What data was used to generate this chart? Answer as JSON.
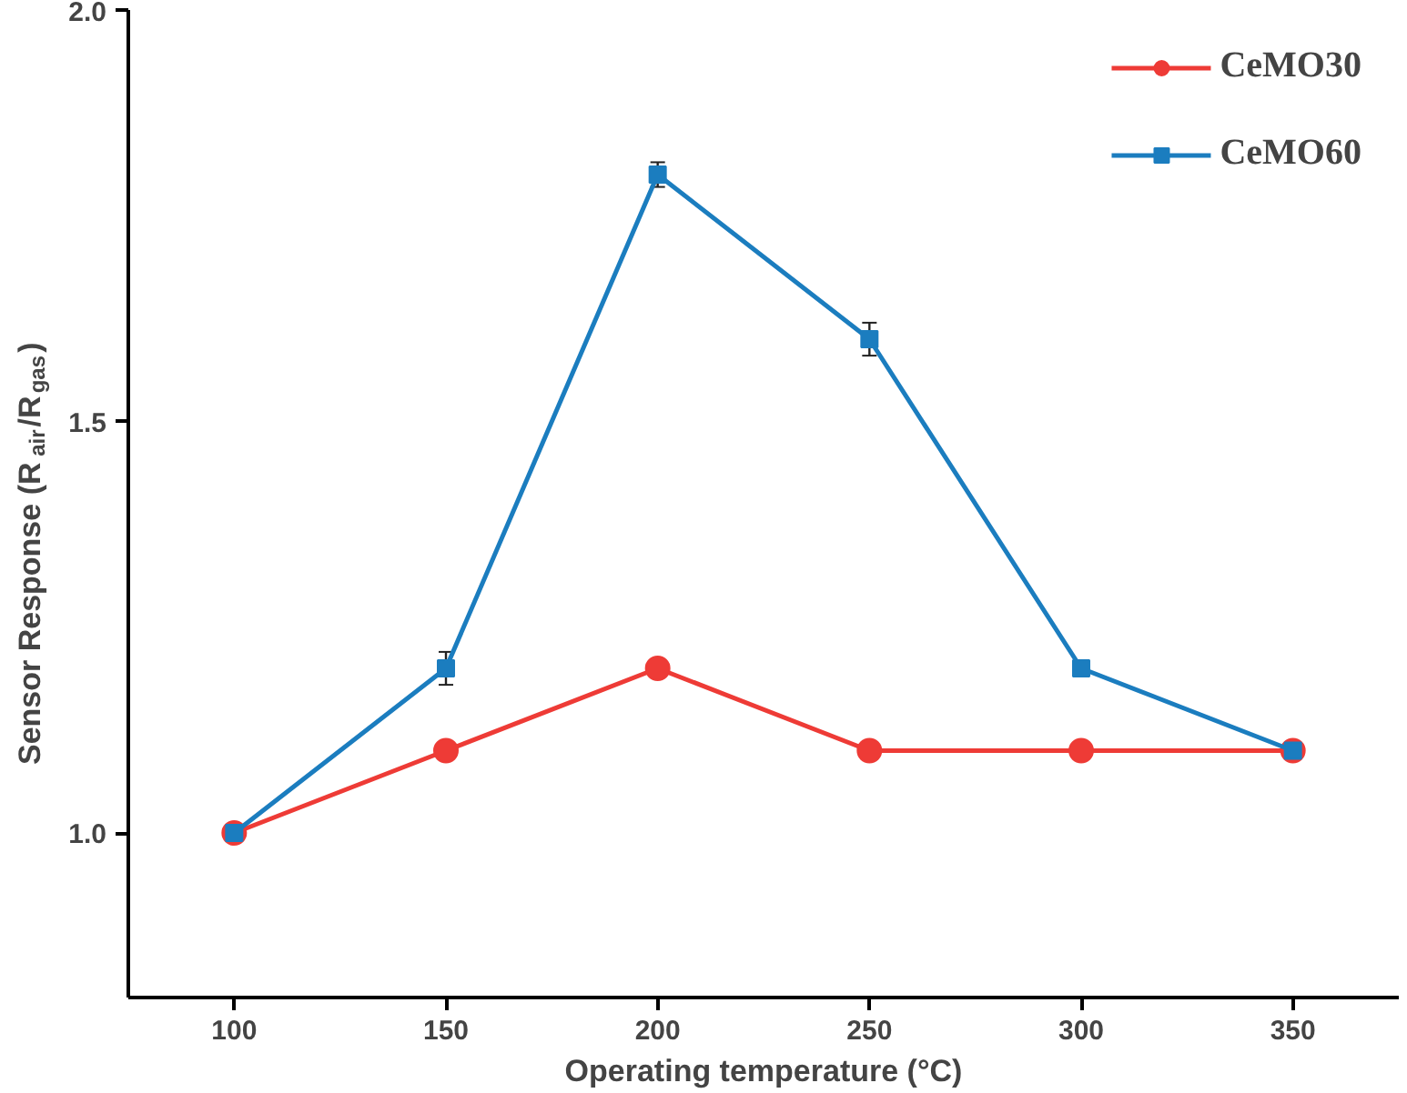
{
  "chart_data": {
    "type": "line",
    "xlabel": "Operating temperature (°C)",
    "ylabel": "Sensor Response (R$_{air}$/R$_{gas}$)",
    "x": [
      100,
      150,
      200,
      250,
      300,
      350
    ],
    "series": [
      {
        "name": "CeMO30",
        "color": "#ee3b36",
        "marker": "circle",
        "values": [
          1.0,
          1.1,
          1.2,
          1.1,
          1.1,
          1.1
        ]
      },
      {
        "name": "CeMO60",
        "color": "#1b7dbf",
        "marker": "square",
        "values": [
          1.0,
          1.2,
          1.8,
          1.6,
          1.2,
          1.1
        ],
        "errors": [
          null,
          0.02,
          0.015,
          0.02,
          null,
          null
        ]
      }
    ],
    "xlim": [
      75,
      375
    ],
    "ylim": [
      0.8,
      2.0
    ],
    "xticks": [
      100,
      150,
      200,
      250,
      300,
      350
    ],
    "yticks": [
      {
        "value": 1.0,
        "label": "1.0"
      },
      1.5,
      {
        "value": 2.0,
        "label": "2.0"
      }
    ],
    "legend": "top right",
    "grid": false,
    "line_style": "solid"
  }
}
